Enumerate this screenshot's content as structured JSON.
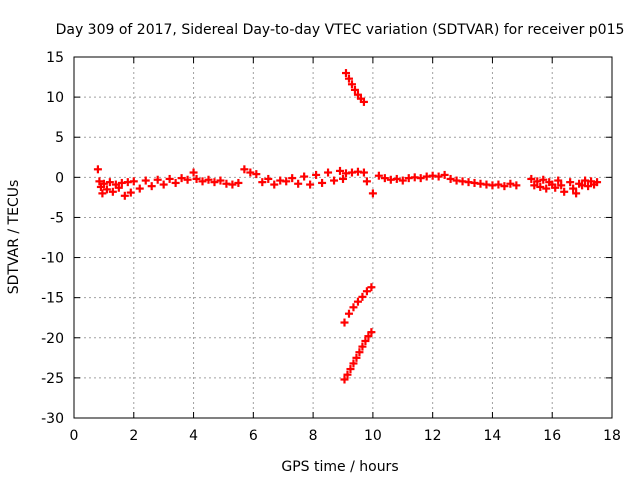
{
  "chart_data": {
    "type": "scatter",
    "title": "Day 309 of 2017, Sidereal Day-to-day VTEC variation (SDTVAR) for receiver p015",
    "xlabel": "GPS time / hours",
    "ylabel": "SDTVAR / TECUs",
    "xlim": [
      0,
      18
    ],
    "ylim": [
      -30,
      15
    ],
    "xticks": [
      0,
      2,
      4,
      6,
      8,
      10,
      12,
      14,
      16,
      18
    ],
    "yticks": [
      15,
      10,
      5,
      0,
      -5,
      -10,
      -15,
      -20,
      -25,
      -30
    ],
    "grid": true,
    "marker": "+",
    "marker_color": "#ff0000",
    "series": [
      {
        "values": [
          [
            0.8,
            1.0
          ],
          [
            0.85,
            -0.5
          ],
          [
            0.9,
            -1.2
          ],
          [
            0.95,
            -2.0
          ],
          [
            1.0,
            -0.8
          ],
          [
            1.1,
            -1.5
          ],
          [
            1.2,
            -0.6
          ],
          [
            1.3,
            -1.8
          ],
          [
            1.4,
            -0.9
          ],
          [
            1.5,
            -1.3
          ],
          [
            1.6,
            -0.7
          ],
          [
            1.7,
            -2.3
          ],
          [
            1.8,
            -0.6
          ],
          [
            1.9,
            -1.9
          ],
          [
            2.0,
            -0.5
          ],
          [
            2.2,
            -1.4
          ],
          [
            2.4,
            -0.4
          ],
          [
            2.6,
            -1.1
          ],
          [
            2.8,
            -0.3
          ],
          [
            3.0,
            -0.9
          ],
          [
            3.2,
            -0.2
          ],
          [
            3.4,
            -0.7
          ],
          [
            3.6,
            -0.1
          ],
          [
            3.8,
            -0.3
          ],
          [
            4.0,
            0.6
          ],
          [
            4.1,
            -0.2
          ],
          [
            4.3,
            -0.5
          ],
          [
            4.5,
            -0.3
          ],
          [
            4.7,
            -0.6
          ],
          [
            4.9,
            -0.4
          ],
          [
            5.1,
            -0.8
          ],
          [
            5.3,
            -0.9
          ],
          [
            5.5,
            -0.7
          ],
          [
            5.7,
            1.0
          ],
          [
            5.9,
            0.6
          ],
          [
            6.1,
            0.4
          ],
          [
            6.3,
            -0.6
          ],
          [
            6.5,
            -0.2
          ],
          [
            6.7,
            -0.9
          ],
          [
            6.9,
            -0.4
          ],
          [
            7.1,
            -0.5
          ],
          [
            7.3,
            -0.1
          ],
          [
            7.5,
            -0.8
          ],
          [
            7.7,
            0.1
          ],
          [
            7.9,
            -0.9
          ],
          [
            8.1,
            0.3
          ],
          [
            8.3,
            -0.7
          ],
          [
            8.5,
            0.6
          ],
          [
            8.7,
            -0.4
          ],
          [
            8.9,
            0.8
          ],
          [
            9.0,
            -0.2
          ],
          [
            9.1,
            0.5
          ],
          [
            9.3,
            0.6
          ],
          [
            9.5,
            0.7
          ],
          [
            9.7,
            0.6
          ],
          [
            9.8,
            -0.5
          ],
          [
            10.0,
            -2.0
          ],
          [
            10.2,
            0.2
          ],
          [
            10.4,
            -0.1
          ],
          [
            10.6,
            -0.3
          ],
          [
            10.8,
            -0.2
          ],
          [
            11.0,
            -0.4
          ],
          [
            11.2,
            -0.1
          ],
          [
            11.4,
            0.0
          ],
          [
            11.6,
            -0.1
          ],
          [
            11.8,
            0.1
          ],
          [
            12.0,
            0.2
          ],
          [
            12.2,
            0.1
          ],
          [
            12.4,
            0.3
          ],
          [
            12.6,
            -0.2
          ],
          [
            12.8,
            -0.4
          ],
          [
            13.0,
            -0.5
          ],
          [
            13.2,
            -0.6
          ],
          [
            13.4,
            -0.7
          ],
          [
            13.6,
            -0.8
          ],
          [
            13.8,
            -0.9
          ],
          [
            14.0,
            -1.0
          ],
          [
            14.2,
            -0.9
          ],
          [
            14.4,
            -1.1
          ],
          [
            14.6,
            -0.8
          ],
          [
            14.8,
            -1.0
          ],
          [
            15.3,
            -0.2
          ],
          [
            15.4,
            -1.0
          ],
          [
            15.5,
            -0.5
          ],
          [
            15.6,
            -1.2
          ],
          [
            15.7,
            -0.3
          ],
          [
            15.8,
            -1.4
          ],
          [
            15.9,
            -0.6
          ],
          [
            16.0,
            -0.9
          ],
          [
            16.1,
            -1.3
          ],
          [
            16.2,
            -0.4
          ],
          [
            16.3,
            -1.0
          ],
          [
            16.4,
            -1.8
          ],
          [
            16.6,
            -0.6
          ],
          [
            16.7,
            -1.4
          ],
          [
            16.8,
            -2.0
          ],
          [
            16.9,
            -0.8
          ],
          [
            17.0,
            -1.0
          ],
          [
            17.1,
            -0.4
          ],
          [
            17.2,
            -1.1
          ],
          [
            17.3,
            -0.5
          ],
          [
            17.4,
            -0.9
          ],
          [
            17.5,
            -0.6
          ],
          [
            9.1,
            13.0
          ],
          [
            9.2,
            12.3
          ],
          [
            9.3,
            11.6
          ],
          [
            9.4,
            10.9
          ],
          [
            9.5,
            10.3
          ],
          [
            9.6,
            9.8
          ],
          [
            9.7,
            9.4
          ],
          [
            9.05,
            -18.1
          ],
          [
            9.2,
            -17.0
          ],
          [
            9.35,
            -16.2
          ],
          [
            9.5,
            -15.5
          ],
          [
            9.65,
            -14.9
          ],
          [
            9.8,
            -14.2
          ],
          [
            9.95,
            -13.7
          ],
          [
            9.05,
            -25.2
          ],
          [
            9.15,
            -24.6
          ],
          [
            9.25,
            -23.9
          ],
          [
            9.35,
            -23.2
          ],
          [
            9.45,
            -22.5
          ],
          [
            9.55,
            -21.8
          ],
          [
            9.65,
            -21.1
          ],
          [
            9.75,
            -20.4
          ],
          [
            9.85,
            -19.8
          ],
          [
            9.95,
            -19.3
          ]
        ]
      }
    ]
  }
}
